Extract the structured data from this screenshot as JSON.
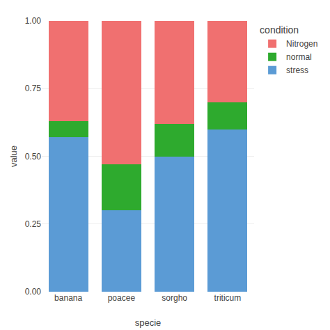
{
  "chart_data": {
    "type": "bar",
    "stacked": true,
    "categories": [
      "banana",
      "poacee",
      "sorgho",
      "triticum"
    ],
    "series": [
      {
        "name": "stress",
        "color": "#5B9BD5",
        "values": [
          0.57,
          0.3,
          0.5,
          0.6
        ]
      },
      {
        "name": "normal",
        "color": "#2EAA2E",
        "values": [
          0.06,
          0.17,
          0.12,
          0.1
        ]
      },
      {
        "name": "Nitrogen",
        "color": "#F07070",
        "values": [
          0.37,
          0.53,
          0.38,
          0.3
        ]
      }
    ],
    "xlabel": "specie",
    "ylabel": "value",
    "ylim": [
      0,
      1.0
    ],
    "yticks": [
      {
        "value": 0,
        "label": "0.00"
      },
      {
        "value": 0.25,
        "label": "0.25"
      },
      {
        "value": 0.5,
        "label": "0.50"
      },
      {
        "value": 0.75,
        "label": "0.75"
      },
      {
        "value": 1.0,
        "label": "1.00"
      }
    ],
    "grid": true,
    "legend": "right",
    "legend_title": "condition"
  }
}
